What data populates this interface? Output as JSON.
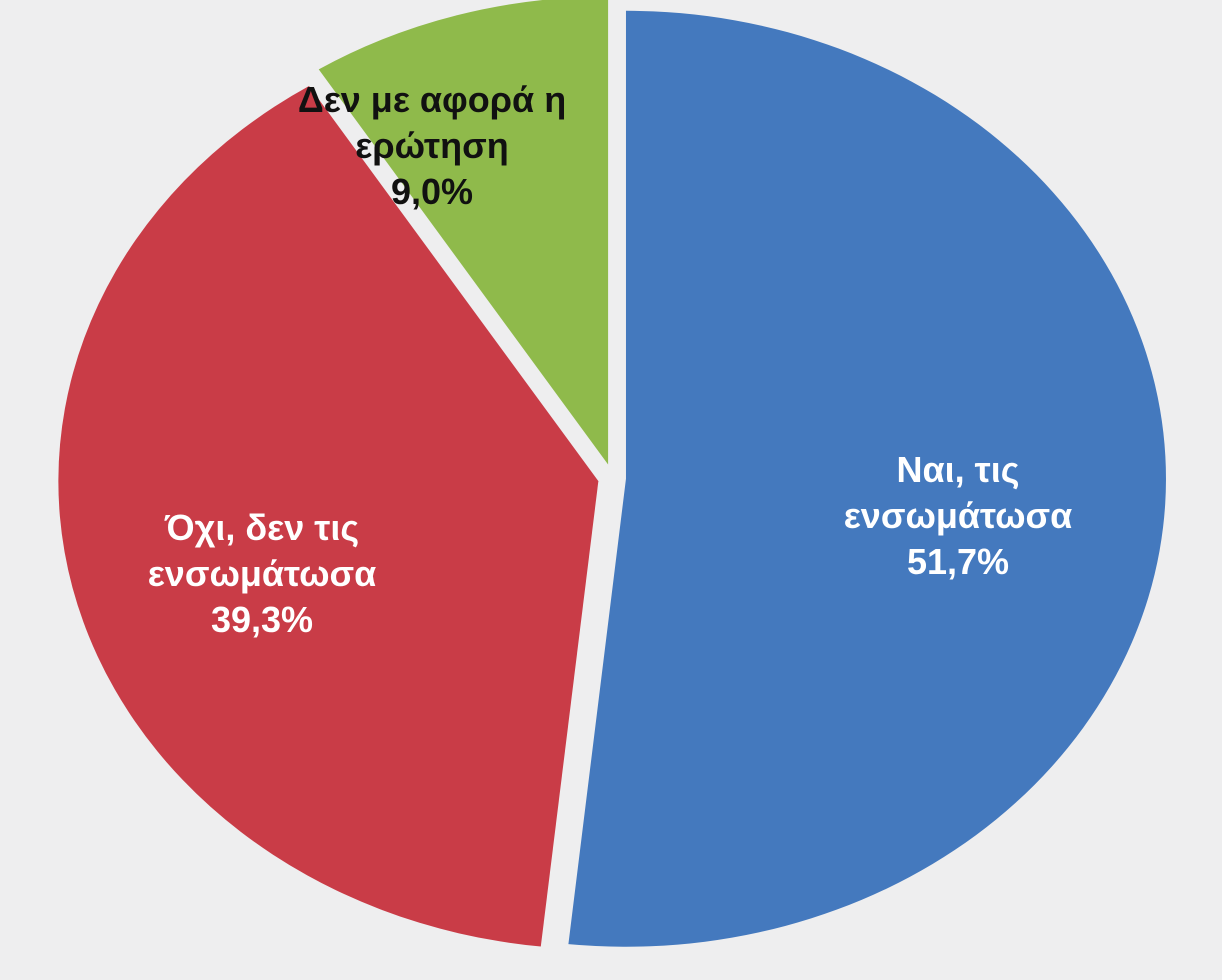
{
  "chart_data": {
    "type": "pie",
    "slices": [
      {
        "label_lines": [
          "Ναι, τις",
          "ενσωμάτωσα"
        ],
        "value_label": "51,7%",
        "value": 51.7,
        "color": "#4479be",
        "label_color": "#ffffff"
      },
      {
        "label_lines": [
          "Όχι, δεν τις",
          "ενσωμάτωσα"
        ],
        "value_label": "39,3%",
        "value": 39.3,
        "color": "#c93c47",
        "label_color": "#ffffff"
      },
      {
        "label_lines": [
          "Δεν με αφορά η",
          "ερώτηση"
        ],
        "value_label": "9,0%",
        "value": 9.0,
        "color": "#8fba4b",
        "label_color": "#111111"
      }
    ],
    "legend": "none",
    "background_color": "#eeeeef"
  }
}
